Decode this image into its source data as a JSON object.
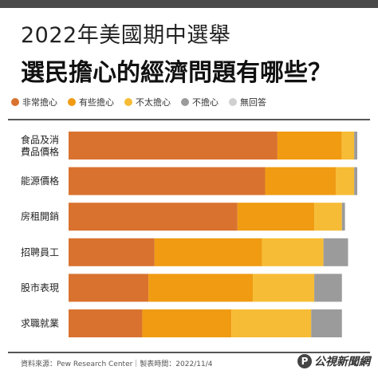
{
  "title": "2022年美國期中選舉",
  "subtitle": "選民擔心的經濟問題有哪些？",
  "source_text": "資料來源：Pew Research Center｜製表時間：2022/11/4",
  "brand": {
    "mark": "P",
    "name": "公視新聞網"
  },
  "colors": {
    "very_worried": "#D9722F",
    "somewhat_worried": "#F09B12",
    "not_too_worried": "#F6BC35",
    "not_worried": "#9B9B9B",
    "no_answer": "#D0D0D0"
  },
  "chart_data": {
    "type": "bar",
    "orientation": "horizontal",
    "stacked": true,
    "categories": [
      [
        "食品及消",
        "費品價格"
      ],
      [
        "能源價格"
      ],
      [
        "房租開銷"
      ],
      [
        "招聘員工"
      ],
      [
        "股市表現"
      ],
      [
        "求職就業"
      ]
    ],
    "series": [
      {
        "name": "非常擔心",
        "color": "#D9722F",
        "values": [
          68,
          64,
          55,
          28,
          26,
          24
        ]
      },
      {
        "name": "有些擔心",
        "color": "#F09B12",
        "values": [
          21,
          23,
          25,
          35,
          34,
          29
        ]
      },
      {
        "name": "不太擔心",
        "color": "#F6BC35",
        "values": [
          4,
          6,
          9,
          20,
          20,
          26
        ]
      },
      {
        "name": "不擔心",
        "color": "#9B9B9B",
        "values": [
          1,
          1,
          1,
          8,
          9,
          10
        ]
      },
      {
        "name": "無回答",
        "color": "#D0D0D0",
        "values": [
          0,
          0,
          0,
          0,
          0,
          0
        ]
      }
    ],
    "xlim": [
      0,
      94
    ],
    "grid": false,
    "legend_position": "top"
  }
}
